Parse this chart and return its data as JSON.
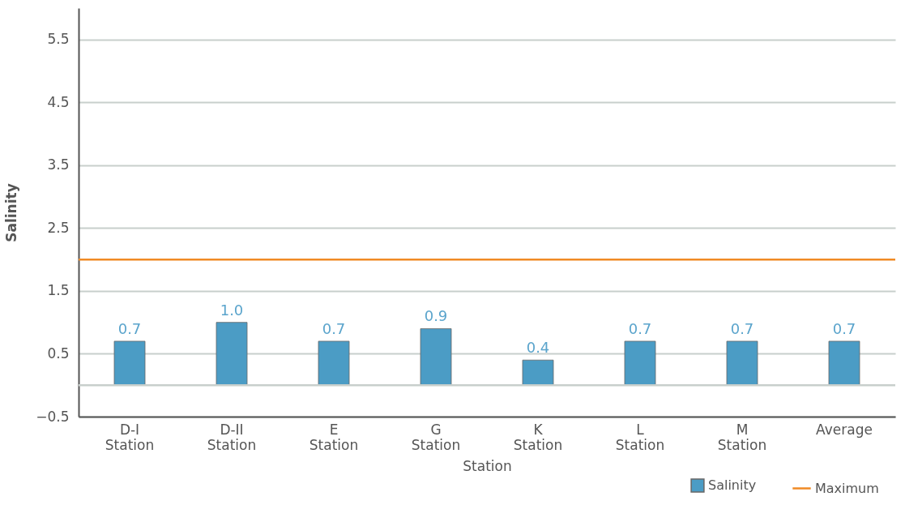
{
  "chart_data": {
    "type": "bar",
    "xlabel": "Station",
    "ylabel": "Salinity",
    "categories": [
      "D-I Station",
      "D-II Station",
      "E Station",
      "G Station",
      "K Station",
      "L Station",
      "M Station",
      "Average"
    ],
    "series": [
      {
        "name": "Salinity",
        "color": "#4b9cc5",
        "values": [
          0.7,
          1.0,
          0.7,
          0.9,
          0.4,
          0.7,
          0.7,
          0.7
        ],
        "value_labels": [
          "0.7",
          "1.0",
          "0.7",
          "0.9",
          "0.4",
          "0.7",
          "0.7",
          "0.7"
        ]
      }
    ],
    "ylim": [
      -0.5,
      6
    ],
    "yticks": [
      -0.5,
      0.5,
      1.5,
      2.5,
      3.5,
      4.5,
      5.5
    ],
    "grid": "y",
    "legend": "bottom right",
    "ref_lines": [
      {
        "axis": "y",
        "value": 0,
        "color": "#c8cfcc"
      },
      {
        "axis": "y",
        "value": 2.0,
        "label": "Maximum",
        "color": "#f08a24"
      }
    ]
  }
}
